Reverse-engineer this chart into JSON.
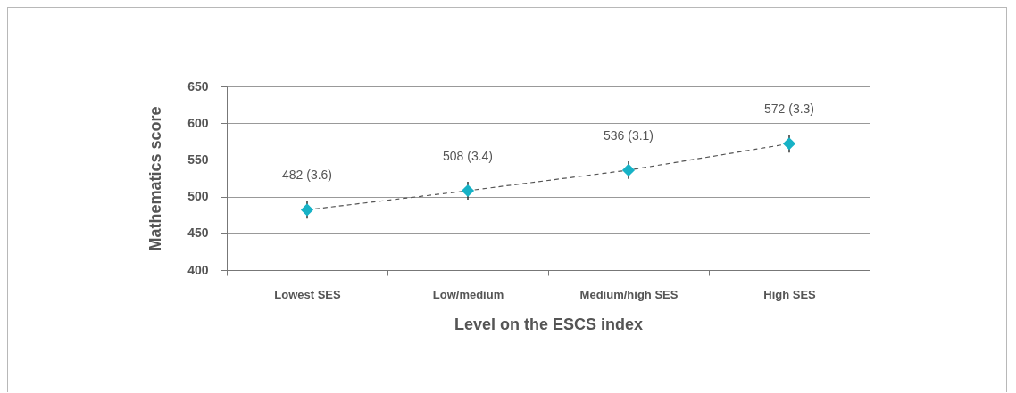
{
  "chart_data": {
    "type": "line",
    "xlabel": "Level on the ESCS index",
    "ylabel": "Mathematics score",
    "categories": [
      "Lowest SES",
      "Low/medium",
      "Medium/high SES",
      "High SES"
    ],
    "series": [
      {
        "color": "#17b2c6",
        "values": [
          482,
          508,
          536,
          572
        ],
        "errors": [
          12,
          12,
          12,
          12
        ],
        "value_labels": [
          "482 (3.6)",
          "508 (3.4)",
          "536 (3.1)",
          "572 (3.3)"
        ]
      }
    ],
    "ylim": [
      400,
      650
    ],
    "yticks": [
      400,
      450,
      500,
      550,
      600,
      650
    ],
    "grid": "y",
    "marker": "diamond",
    "line_style": "dashed"
  }
}
